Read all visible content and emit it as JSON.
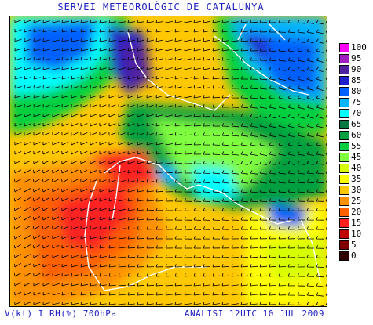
{
  "header": {
    "title": "SERVEI METEOROLÒGIC DE CATALUNYA"
  },
  "footer": {
    "variables": "V(kt) I RH(%) 700hPa",
    "analysis": "ANÀLISI 12UTC 10 JUL 2009"
  },
  "legend": {
    "items": [
      {
        "label": "100",
        "color": "#ff00ff"
      },
      {
        "label": "95",
        "color": "#a020c0"
      },
      {
        "label": "90",
        "color": "#5020a0"
      },
      {
        "label": "85",
        "color": "#2020c8"
      },
      {
        "label": "80",
        "color": "#0060ff"
      },
      {
        "label": "75",
        "color": "#00b4ff"
      },
      {
        "label": "70",
        "color": "#00ffff"
      },
      {
        "label": "65",
        "color": "#007840"
      },
      {
        "label": "60",
        "color": "#00a040"
      },
      {
        "label": "55",
        "color": "#00d040"
      },
      {
        "label": "45",
        "color": "#80ff40"
      },
      {
        "label": "40",
        "color": "#d8ff00"
      },
      {
        "label": "35",
        "color": "#ffff00"
      },
      {
        "label": "30",
        "color": "#ffc800"
      },
      {
        "label": "25",
        "color": "#ff9000"
      },
      {
        "label": "20",
        "color": "#ff6000"
      },
      {
        "label": "15",
        "color": "#ff2020"
      },
      {
        "label": "10",
        "color": "#c00000"
      },
      {
        "label": "5",
        "color": "#800000"
      },
      {
        "label": "0",
        "color": "#300000"
      }
    ]
  }
}
